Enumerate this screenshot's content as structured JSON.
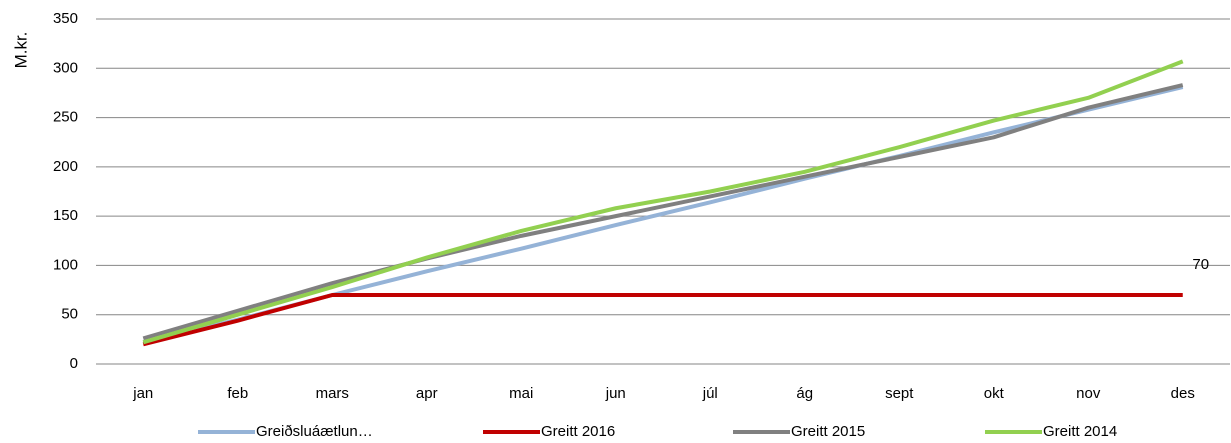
{
  "chart_data": {
    "type": "line",
    "y_label": "M.kr.",
    "categories": [
      "jan",
      "feb",
      "mars",
      "apr",
      "mai",
      "jun",
      "júl",
      "ág",
      "sept",
      "okt",
      "nov",
      "des"
    ],
    "series": [
      {
        "name": "Greiðsluáætlun…",
        "color": "#95b3d7",
        "values": [
          22,
          45,
          70,
          94,
          117,
          141,
          164,
          188,
          211,
          235,
          258,
          281
        ]
      },
      {
        "name": "Greitt 2016",
        "color": "#c00000",
        "values": [
          20,
          44,
          70,
          70,
          70,
          70,
          70,
          70,
          70,
          70,
          70,
          70
        ],
        "data_labels": "last"
      },
      {
        "name": "Greitt 2015",
        "color": "#808080",
        "values": [
          26,
          54,
          82,
          107,
          130,
          150,
          170,
          190,
          210,
          230,
          260,
          283
        ]
      },
      {
        "name": "Greitt 2014",
        "color": "#92d050",
        "values": [
          22,
          50,
          78,
          108,
          135,
          158,
          175,
          195,
          220,
          247,
          270,
          307
        ]
      }
    ],
    "ylim": [
      0,
      350
    ],
    "yticks": [
      0,
      50,
      100,
      150,
      200,
      250,
      300,
      350
    ],
    "grid": true,
    "legend": "bottom"
  }
}
